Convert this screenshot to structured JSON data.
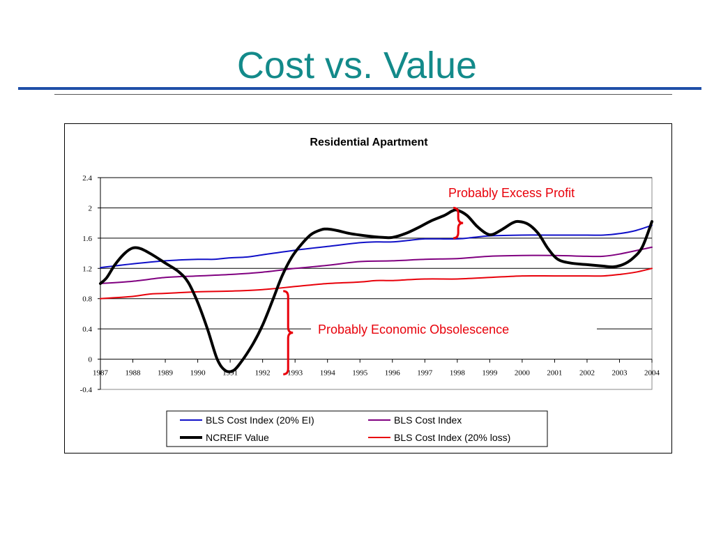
{
  "slide": {
    "title": "Cost vs. Value"
  },
  "colors": {
    "title": "#138a8a",
    "rule": "#1f4fa8",
    "annotation": "#e8000a"
  },
  "chart_data": {
    "type": "line",
    "title": "Residential Apartment",
    "xlabel": "",
    "ylabel": "",
    "ylim": [
      -0.4,
      2.4
    ],
    "xlim": [
      1987,
      2004
    ],
    "y_ticks": [
      "2.4",
      "2",
      "1.6",
      "1.2",
      "0.8",
      "0.4",
      "0",
      "-0.4"
    ],
    "y_tick_values": [
      2.4,
      2.0,
      1.6,
      1.2,
      0.8,
      0.4,
      0.0,
      -0.4
    ],
    "x_ticks": [
      "1987",
      "1988",
      "1989",
      "1990",
      "1991",
      "1992",
      "1993",
      "1994",
      "1995",
      "1996",
      "1997",
      "1998",
      "1999",
      "2000",
      "2001",
      "2002",
      "2003",
      "2004"
    ],
    "grid": "horizontal",
    "legend_position": "bottom",
    "series": [
      {
        "name": "BLS Cost Index (20% EI)",
        "color": "#1010c8",
        "width": 2,
        "points": [
          [
            1987,
            1.21
          ],
          [
            1988,
            1.26
          ],
          [
            1989,
            1.3
          ],
          [
            1990,
            1.32
          ],
          [
            1990.5,
            1.32
          ],
          [
            1991,
            1.34
          ],
          [
            1991.5,
            1.35
          ],
          [
            1992,
            1.38
          ],
          [
            1993,
            1.44
          ],
          [
            1994,
            1.49
          ],
          [
            1995,
            1.54
          ],
          [
            1995.5,
            1.55
          ],
          [
            1996,
            1.55
          ],
          [
            1996.5,
            1.57
          ],
          [
            1997,
            1.59
          ],
          [
            1998,
            1.59
          ],
          [
            1998.5,
            1.61
          ],
          [
            1999,
            1.63
          ],
          [
            2000,
            1.64
          ],
          [
            2001,
            1.64
          ],
          [
            2002,
            1.64
          ],
          [
            2002.5,
            1.64
          ],
          [
            2003,
            1.66
          ],
          [
            2003.5,
            1.7
          ],
          [
            2004,
            1.77
          ]
        ]
      },
      {
        "name": "BLS Cost Index",
        "color": "#800080",
        "width": 2,
        "points": [
          [
            1987,
            1.0
          ],
          [
            1988,
            1.03
          ],
          [
            1989,
            1.08
          ],
          [
            1990,
            1.1
          ],
          [
            1991,
            1.12
          ],
          [
            1992,
            1.15
          ],
          [
            1993,
            1.2
          ],
          [
            1994,
            1.24
          ],
          [
            1995,
            1.29
          ],
          [
            1996,
            1.3
          ],
          [
            1997,
            1.32
          ],
          [
            1998,
            1.33
          ],
          [
            1999,
            1.36
          ],
          [
            2000,
            1.37
          ],
          [
            2001,
            1.37
          ],
          [
            2002,
            1.36
          ],
          [
            2002.5,
            1.36
          ],
          [
            2003,
            1.39
          ],
          [
            2004,
            1.48
          ]
        ]
      },
      {
        "name": "NCREIF Value",
        "color": "#000000",
        "width": 4,
        "points": [
          [
            1987,
            1.0
          ],
          [
            1987.2,
            1.08
          ],
          [
            1987.45,
            1.25
          ],
          [
            1987.75,
            1.4
          ],
          [
            1988,
            1.47
          ],
          [
            1988.25,
            1.46
          ],
          [
            1988.6,
            1.38
          ],
          [
            1989,
            1.27
          ],
          [
            1989.4,
            1.16
          ],
          [
            1989.7,
            1.02
          ],
          [
            1990,
            0.75
          ],
          [
            1990.3,
            0.4
          ],
          [
            1990.6,
            0.0
          ],
          [
            1990.85,
            -0.15
          ],
          [
            1991.1,
            -0.15
          ],
          [
            1991.35,
            -0.03
          ],
          [
            1991.7,
            0.2
          ],
          [
            1992,
            0.45
          ],
          [
            1992.3,
            0.77
          ],
          [
            1992.6,
            1.1
          ],
          [
            1992.9,
            1.35
          ],
          [
            1993.2,
            1.52
          ],
          [
            1993.5,
            1.65
          ],
          [
            1993.8,
            1.71
          ],
          [
            1994,
            1.72
          ],
          [
            1994.3,
            1.7
          ],
          [
            1994.7,
            1.66
          ],
          [
            1995.2,
            1.63
          ],
          [
            1995.7,
            1.61
          ],
          [
            1996,
            1.61
          ],
          [
            1996.4,
            1.66
          ],
          [
            1996.8,
            1.74
          ],
          [
            1997.2,
            1.83
          ],
          [
            1997.6,
            1.9
          ],
          [
            1997.85,
            1.96
          ],
          [
            1998,
            1.97
          ],
          [
            1998.3,
            1.9
          ],
          [
            1998.6,
            1.76
          ],
          [
            1998.9,
            1.66
          ],
          [
            1999.1,
            1.65
          ],
          [
            1999.4,
            1.72
          ],
          [
            1999.7,
            1.8
          ],
          [
            1999.9,
            1.82
          ],
          [
            2000.2,
            1.78
          ],
          [
            2000.5,
            1.66
          ],
          [
            2000.8,
            1.46
          ],
          [
            2001.1,
            1.32
          ],
          [
            2001.5,
            1.27
          ],
          [
            2002,
            1.25
          ],
          [
            2002.5,
            1.23
          ],
          [
            2002.8,
            1.22
          ],
          [
            2003.1,
            1.25
          ],
          [
            2003.4,
            1.33
          ],
          [
            2003.7,
            1.48
          ],
          [
            2004,
            1.82
          ]
        ]
      },
      {
        "name": "BLS Cost Index  (20% loss)",
        "color": "#e8000a",
        "width": 2,
        "points": [
          [
            1987,
            0.8
          ],
          [
            1988,
            0.83
          ],
          [
            1988.5,
            0.86
          ],
          [
            1989,
            0.87
          ],
          [
            1990,
            0.89
          ],
          [
            1991,
            0.9
          ],
          [
            1992,
            0.92
          ],
          [
            1993,
            0.96
          ],
          [
            1994,
            1.0
          ],
          [
            1995,
            1.02
          ],
          [
            1995.5,
            1.04
          ],
          [
            1996,
            1.04
          ],
          [
            1997,
            1.06
          ],
          [
            1998,
            1.06
          ],
          [
            1999,
            1.08
          ],
          [
            2000,
            1.1
          ],
          [
            2001,
            1.1
          ],
          [
            2002,
            1.1
          ],
          [
            2002.5,
            1.1
          ],
          [
            2003,
            1.12
          ],
          [
            2003.5,
            1.15
          ],
          [
            2004,
            1.2
          ]
        ]
      }
    ],
    "annotations": [
      {
        "text": "Probably Excess Profit",
        "brace_from_y": 1.6,
        "brace_to_y": 2.0,
        "brace_x": 1997.9
      },
      {
        "text": "Probably Economic Obsolescence",
        "brace_from_y": -0.2,
        "brace_to_y": 0.9,
        "brace_x": 1992.7
      }
    ]
  }
}
